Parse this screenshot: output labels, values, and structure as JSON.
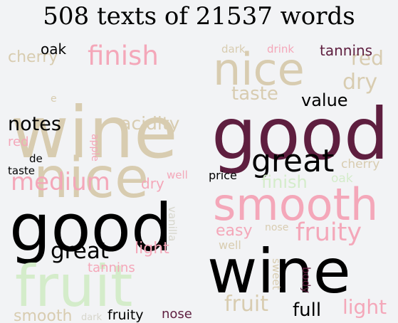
{
  "title": "508 texts of 21537 words",
  "chart_data": {
    "type": "wordcloud",
    "title": "508 texts of 21537 words",
    "colors": {
      "black": "#000000",
      "maroon": "#5e1e3f",
      "pink": "#f4a7b9",
      "tan": "#d8ccb0",
      "light_green": "#d4ecca",
      "light_gray": "#d7d6cc"
    },
    "clouds": [
      {
        "words": [
          {
            "text": "wine",
            "color": "#d8ccb0"
          },
          {
            "text": "nice",
            "color": "#d8ccb0"
          },
          {
            "text": "good",
            "color": "#000000"
          },
          {
            "text": "fruit",
            "color": "#d4ecca"
          },
          {
            "text": "finish",
            "color": "#f4a7b9"
          },
          {
            "text": "medium",
            "color": "#f4a7b9"
          },
          {
            "text": "great",
            "color": "#000000"
          },
          {
            "text": "notes",
            "color": "#000000"
          },
          {
            "text": "acidity",
            "color": "#d8ccb0"
          },
          {
            "text": "cherry",
            "color": "#d8ccb0"
          },
          {
            "text": "oak",
            "color": "#000000"
          },
          {
            "text": "light",
            "color": "#f4a7b9"
          },
          {
            "text": "dry",
            "color": "#f4a7b9"
          },
          {
            "text": "red",
            "color": "#f4a7b9"
          },
          {
            "text": "smooth",
            "color": "#d8ccb0"
          },
          {
            "text": "tannins",
            "color": "#f4a7b9"
          },
          {
            "text": "fruity",
            "color": "#000000"
          },
          {
            "text": "nose",
            "color": "#5e1e3f"
          },
          {
            "text": "taste",
            "color": "#000000"
          },
          {
            "text": "de",
            "color": "#000000"
          },
          {
            "text": "well",
            "color": "#f4a7b9"
          },
          {
            "text": "vanilla",
            "color": "#d7d6cc"
          },
          {
            "text": "apple",
            "color": "#f4a7b9"
          },
          {
            "text": "e",
            "color": "#d8ccb0"
          },
          {
            "text": "dark",
            "color": "#d7d6cc"
          }
        ]
      },
      {
        "words": [
          {
            "text": "good",
            "color": "#5e1e3f"
          },
          {
            "text": "wine",
            "color": "#000000"
          },
          {
            "text": "smooth",
            "color": "#f4a7b9"
          },
          {
            "text": "nice",
            "color": "#d8ccb0"
          },
          {
            "text": "great",
            "color": "#000000"
          },
          {
            "text": "fruity",
            "color": "#f4a7b9"
          },
          {
            "text": "taste",
            "color": "#d8ccb0"
          },
          {
            "text": "dry",
            "color": "#d8ccb0"
          },
          {
            "text": "red",
            "color": "#d8ccb0"
          },
          {
            "text": "fruit",
            "color": "#d8ccb0"
          },
          {
            "text": "full",
            "color": "#000000"
          },
          {
            "text": "light",
            "color": "#f4a7b9"
          },
          {
            "text": "value",
            "color": "#000000"
          },
          {
            "text": "tannins",
            "color": "#5e1e3f"
          },
          {
            "text": "finish",
            "color": "#d4ecca"
          },
          {
            "text": "easy",
            "color": "#f4a7b9"
          },
          {
            "text": "price",
            "color": "#000000"
          },
          {
            "text": "cherry",
            "color": "#d8ccb0"
          },
          {
            "text": "oak",
            "color": "#d4ecca"
          },
          {
            "text": "nose",
            "color": "#d8ccb0"
          },
          {
            "text": "well",
            "color": "#d8ccb0"
          },
          {
            "text": "dark",
            "color": "#d8ccb0"
          },
          {
            "text": "drink",
            "color": "#f4a7b9"
          },
          {
            "text": "sweet",
            "color": "#d8ccb0"
          },
          {
            "text": "body",
            "color": "#5e1e3f"
          }
        ]
      }
    ]
  }
}
